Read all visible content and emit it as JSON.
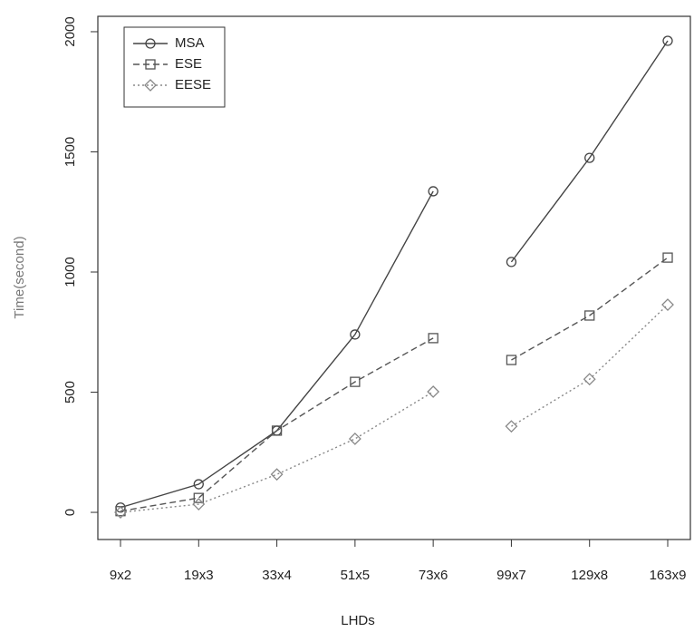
{
  "chart_data": {
    "type": "line",
    "x_label": "LHDs",
    "y_label": "Time(second)",
    "categories": [
      "9x2",
      "19x3",
      "33x4",
      "51x5",
      "73x6",
      "99x7",
      "129x8",
      "163x9"
    ],
    "series": [
      {
        "name": "MSA",
        "color": "#444444",
        "dash": "solid",
        "marker": "circle",
        "values": [
          20,
          117,
          340,
          740,
          1336,
          1042,
          1475,
          1962
        ]
      },
      {
        "name": "ESE",
        "color": "#555555",
        "dash": "dashed",
        "marker": "square",
        "values": [
          5,
          60,
          340,
          543,
          725,
          634,
          819,
          1060
        ]
      },
      {
        "name": "EESE",
        "color": "#888888",
        "dash": "dotted",
        "marker": "diamond",
        "values": [
          0,
          34,
          158,
          306,
          502,
          358,
          554,
          864
        ]
      }
    ],
    "ylim": [
      -113,
      2064
    ],
    "yticks": [
      0,
      500,
      1000,
      1500,
      2000
    ],
    "legend": "top-left"
  }
}
